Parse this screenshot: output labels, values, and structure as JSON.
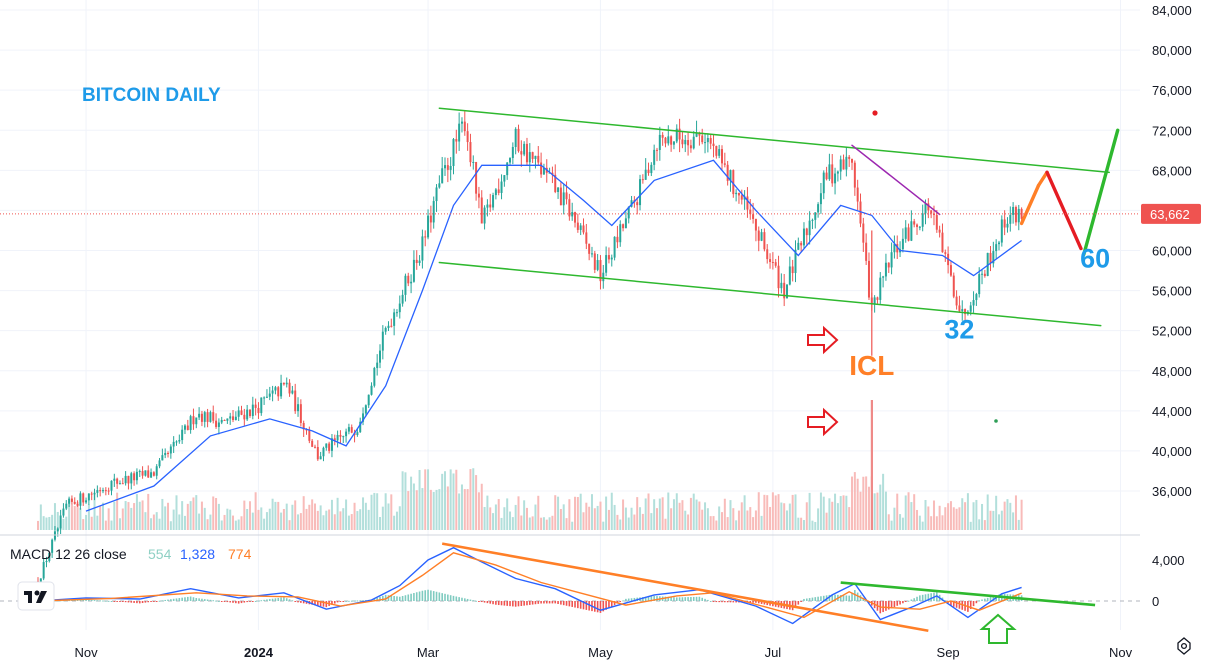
{
  "chart_data": [
    {
      "type": "candlestick",
      "title": "BITCOIN DAILY",
      "y_ticks": [
        36000,
        40000,
        44000,
        48000,
        52000,
        56000,
        60000,
        64000,
        68000,
        72000,
        76000,
        80000,
        84000
      ],
      "y_tick_labels": [
        "36,000",
        "40,000",
        "44,000",
        "48,000",
        "52,000",
        "56,000",
        "60,000",
        "",
        "68,000",
        "72,000",
        "76,000",
        "80,000",
        "84,000"
      ],
      "ylim": [
        31500,
        85500
      ],
      "x_tick_labels": [
        "Nov",
        "2024",
        "Mar",
        "May",
        "Jul",
        "Sep",
        "Nov"
      ],
      "last_price": 63662,
      "last_price_label": "63,662",
      "close_path": [
        [
          "2023-10-15",
          27000
        ],
        [
          "2023-10-25",
          34500
        ],
        [
          "2023-11-10",
          36800
        ],
        [
          "2023-11-25",
          37800
        ],
        [
          "2023-12-05",
          41500
        ],
        [
          "2023-12-10",
          43800
        ],
        [
          "2023-12-20",
          42800
        ],
        [
          "2024-01-01",
          44500
        ],
        [
          "2024-01-11",
          46600
        ],
        [
          "2024-01-22",
          39500
        ],
        [
          "2024-02-05",
          42500
        ],
        [
          "2024-02-15",
          52000
        ],
        [
          "2024-02-28",
          60500
        ],
        [
          "2024-03-05",
          66500
        ],
        [
          "2024-03-14",
          73000
        ],
        [
          "2024-03-20",
          62500
        ],
        [
          "2024-04-01",
          71000
        ],
        [
          "2024-04-13",
          67000
        ],
        [
          "2024-04-20",
          64000
        ],
        [
          "2024-05-01",
          57500
        ],
        [
          "2024-05-15",
          66000
        ],
        [
          "2024-05-21",
          71000
        ],
        [
          "2024-06-07",
          71500
        ],
        [
          "2024-06-20",
          65000
        ],
        [
          "2024-07-05",
          56000
        ],
        [
          "2024-07-20",
          67500
        ],
        [
          "2024-07-29",
          69000
        ],
        [
          "2024-08-05",
          54000
        ],
        [
          "2024-08-12",
          59500
        ],
        [
          "2024-08-25",
          64500
        ],
        [
          "2024-09-06",
          53500
        ],
        [
          "2024-09-15",
          59000
        ],
        [
          "2024-09-22",
          63500
        ],
        [
          "2024-09-27",
          63662
        ]
      ],
      "moving_average": [
        [
          "2023-11-01",
          34000
        ],
        [
          "2023-11-25",
          36500
        ],
        [
          "2023-12-15",
          41500
        ],
        [
          "2024-01-05",
          43200
        ],
        [
          "2024-01-20",
          42000
        ],
        [
          "2024-02-01",
          40500
        ],
        [
          "2024-02-15",
          46500
        ],
        [
          "2024-02-28",
          56000
        ],
        [
          "2024-03-10",
          64500
        ],
        [
          "2024-03-20",
          68500
        ],
        [
          "2024-04-10",
          68500
        ],
        [
          "2024-04-25",
          65000
        ],
        [
          "2024-05-05",
          62500
        ],
        [
          "2024-05-20",
          67000
        ],
        [
          "2024-06-10",
          69000
        ],
        [
          "2024-06-25",
          64000
        ],
        [
          "2024-07-10",
          59500
        ],
        [
          "2024-07-25",
          64500
        ],
        [
          "2024-08-05",
          63500
        ],
        [
          "2024-08-15",
          60000
        ],
        [
          "2024-08-30",
          59500
        ],
        [
          "2024-09-10",
          57500
        ],
        [
          "2024-09-27",
          61000
        ]
      ],
      "volume_label": "",
      "drawn_lines": [
        {
          "name": "channel-top",
          "color": "#2eb82e",
          "from": [
            "2024-03-05",
            74200
          ],
          "to": [
            "2024-10-28",
            67800
          ]
        },
        {
          "name": "channel-bottom",
          "color": "#2eb82e",
          "from": [
            "2024-03-05",
            58800
          ],
          "to": [
            "2024-10-25",
            52500
          ]
        },
        {
          "name": "resistance-purple",
          "color": "#9c27b0",
          "from": [
            "2024-07-29",
            70500
          ],
          "to": [
            "2024-08-29",
            63600
          ]
        },
        {
          "name": "projection-orange",
          "color": "#ff7f27",
          "from": [
            "2024-09-27",
            62700
          ],
          "to": [
            "2024-10-03",
            66500
          ]
        },
        {
          "name": "projection-orange-up",
          "color": "#ff7f27",
          "from": [
            "2024-10-03",
            66500
          ],
          "to": [
            "2024-10-06",
            67800
          ]
        },
        {
          "name": "projection-red",
          "color": "#e51c23",
          "from": [
            "2024-10-06",
            67800
          ],
          "to": [
            "2024-10-18",
            60200
          ]
        },
        {
          "name": "projection-green",
          "color": "#2eb82e",
          "from": [
            "2024-10-19",
            59600
          ],
          "to": [
            "2024-10-31",
            72000
          ]
        }
      ],
      "annotations": [
        {
          "text": "ICL",
          "color": "#ff7f27",
          "at": [
            "2024-08-05",
            47600
          ]
        },
        {
          "text": "32",
          "color": "#1e9be9",
          "at": [
            "2024-09-05",
            51200
          ]
        },
        {
          "text": "60",
          "color": "#1e9be9",
          "at": [
            "2024-10-23",
            58300
          ]
        }
      ]
    },
    {
      "type": "line",
      "title": "MACD",
      "legend_text": "MACD 12 26 close",
      "legend_values": [
        {
          "value": "554",
          "color": "#8fd0c4"
        },
        {
          "value": "1,328",
          "color": "#2962ff"
        },
        {
          "value": "774",
          "color": "#ff7f27"
        }
      ],
      "y_ticks": [
        0,
        4000
      ],
      "y_tick_labels": [
        "0",
        "4,000"
      ],
      "ylim": [
        -3200,
        5800
      ],
      "series": [
        {
          "color": "#2962ff",
          "values": [
            [
              "2023-10-15",
              0
            ],
            [
              "2023-11-01",
              300
            ],
            [
              "2023-11-20",
              200
            ],
            [
              "2023-12-08",
              1200
            ],
            [
              "2023-12-25",
              300
            ],
            [
              "2024-01-10",
              800
            ],
            [
              "2024-01-25",
              -800
            ],
            [
              "2024-02-10",
              100
            ],
            [
              "2024-02-20",
              1500
            ],
            [
              "2024-03-01",
              4000
            ],
            [
              "2024-03-10",
              5200
            ],
            [
              "2024-03-20",
              3800
            ],
            [
              "2024-04-01",
              2200
            ],
            [
              "2024-04-15",
              1200
            ],
            [
              "2024-05-01",
              -900
            ],
            [
              "2024-05-20",
              600
            ],
            [
              "2024-06-05",
              1100
            ],
            [
              "2024-06-25",
              -500
            ],
            [
              "2024-07-08",
              -2200
            ],
            [
              "2024-07-22",
              600
            ],
            [
              "2024-07-30",
              1700
            ],
            [
              "2024-08-08",
              -1800
            ],
            [
              "2024-08-20",
              -500
            ],
            [
              "2024-08-28",
              500
            ],
            [
              "2024-09-08",
              -1600
            ],
            [
              "2024-09-20",
              700
            ],
            [
              "2024-09-27",
              1328
            ]
          ]
        },
        {
          "color": "#ff7f27",
          "values": [
            [
              "2023-10-15",
              0
            ],
            [
              "2023-11-10",
              250
            ],
            [
              "2023-12-10",
              800
            ],
            [
              "2023-12-28",
              500
            ],
            [
              "2024-01-15",
              400
            ],
            [
              "2024-01-30",
              -500
            ],
            [
              "2024-02-15",
              200
            ],
            [
              "2024-02-28",
              2500
            ],
            [
              "2024-03-10",
              4700
            ],
            [
              "2024-03-25",
              3500
            ],
            [
              "2024-04-10",
              1800
            ],
            [
              "2024-04-25",
              700
            ],
            [
              "2024-05-10",
              -400
            ],
            [
              "2024-05-28",
              500
            ],
            [
              "2024-06-10",
              800
            ],
            [
              "2024-06-30",
              -700
            ],
            [
              "2024-07-12",
              -1600
            ],
            [
              "2024-07-28",
              900
            ],
            [
              "2024-08-08",
              -600
            ],
            [
              "2024-08-22",
              -800
            ],
            [
              "2024-09-02",
              0
            ],
            [
              "2024-09-12",
              -900
            ],
            [
              "2024-09-27",
              774
            ]
          ]
        }
      ],
      "histogram_note": "",
      "drawn_lines": [
        {
          "name": "macd-downtrend",
          "color": "#ff7f27",
          "from": [
            "2024-03-06",
            5600
          ],
          "to": [
            "2024-08-25",
            -2900
          ]
        },
        {
          "name": "macd-resistance",
          "color": "#2eb82e",
          "from": [
            "2024-07-25",
            1800
          ],
          "to": [
            "2024-10-23",
            -400
          ]
        }
      ]
    }
  ]
}
